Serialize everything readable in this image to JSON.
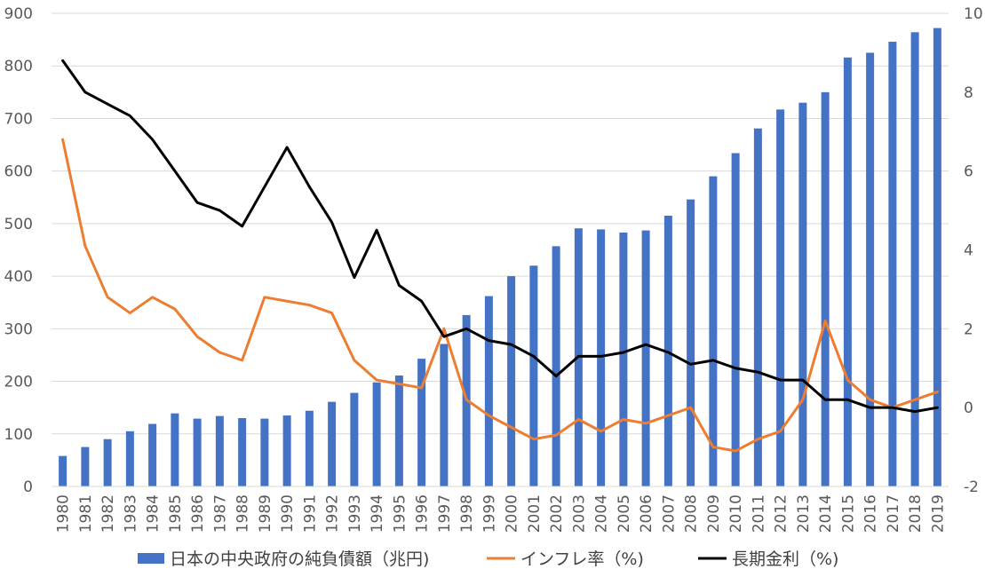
{
  "chart_data": {
    "type": "bar",
    "categories": [
      "1980",
      "1981",
      "1982",
      "1983",
      "1984",
      "1985",
      "1986",
      "1987",
      "1988",
      "1989",
      "1990",
      "1991",
      "1992",
      "1993",
      "1994",
      "1995",
      "1996",
      "1997",
      "1998",
      "1999",
      "2000",
      "2001",
      "2002",
      "2003",
      "2004",
      "2005",
      "2006",
      "2007",
      "2008",
      "2009",
      "2010",
      "2011",
      "2012",
      "2013",
      "2014",
      "2015",
      "2016",
      "2017",
      "2018",
      "2019"
    ],
    "left_axis": {
      "ylim": [
        0,
        900
      ],
      "ticks": [
        "0",
        "100",
        "200",
        "300",
        "400",
        "500",
        "600",
        "700",
        "800",
        "900"
      ]
    },
    "right_axis": {
      "ylim": [
        -2,
        10
      ],
      "ticks": [
        "-2",
        "0",
        "2",
        "4",
        "6",
        "8",
        "10"
      ]
    },
    "grid": true,
    "legend_position": "bottom",
    "series": [
      {
        "name": "日本の中央政府の純負債額（兆円)",
        "type": "bar",
        "axis": "left",
        "color": "#4472C4",
        "values": [
          58,
          75,
          90,
          105,
          119,
          139,
          129,
          134,
          130,
          129,
          135,
          144,
          161,
          178,
          198,
          211,
          243,
          271,
          326,
          362,
          400,
          420,
          457,
          491,
          489,
          483,
          487,
          515,
          546,
          590,
          634,
          681,
          717,
          730,
          750,
          816,
          825,
          846,
          864,
          872
        ]
      },
      {
        "name": "インフレ率（%)",
        "type": "line",
        "axis": "right",
        "color": "#ED7D31",
        "values": [
          6.8,
          4.1,
          2.8,
          2.4,
          2.8,
          2.5,
          1.8,
          1.4,
          1.2,
          2.8,
          2.7,
          2.6,
          2.4,
          1.2,
          0.7,
          0.6,
          0.5,
          2.0,
          0.2,
          -0.2,
          -0.5,
          -0.8,
          -0.7,
          -0.3,
          -0.6,
          -0.3,
          -0.4,
          -0.2,
          0.0,
          -1.0,
          -1.1,
          -0.8,
          -0.6,
          0.2,
          2.2,
          0.7,
          0.2,
          0.0,
          0.2,
          0.4
        ]
      },
      {
        "name": "長期金利（%)",
        "type": "line",
        "axis": "right",
        "color": "#000000",
        "values": [
          8.8,
          8.0,
          7.7,
          7.4,
          6.8,
          6.0,
          5.2,
          5.0,
          4.6,
          5.6,
          6.6,
          5.6,
          4.7,
          3.3,
          4.5,
          3.1,
          2.7,
          1.8,
          2.0,
          1.7,
          1.6,
          1.3,
          0.8,
          1.3,
          1.3,
          1.4,
          1.6,
          1.4,
          1.1,
          1.2,
          1.0,
          0.9,
          0.7,
          0.7,
          0.2,
          0.2,
          0.0,
          0.0,
          -0.1,
          0.0
        ]
      }
    ]
  }
}
